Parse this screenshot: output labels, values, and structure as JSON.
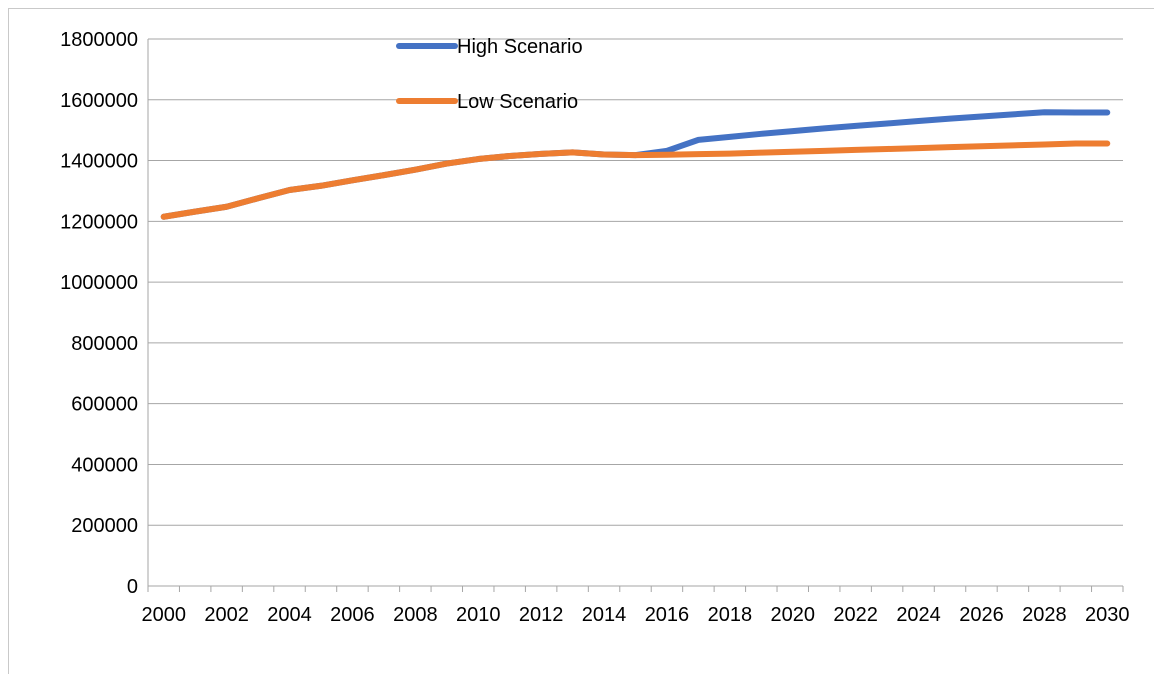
{
  "chart_data": {
    "type": "line",
    "title": "",
    "xlabel": "",
    "ylabel": "",
    "x": [
      2000,
      2001,
      2002,
      2003,
      2004,
      2005,
      2006,
      2007,
      2008,
      2009,
      2010,
      2011,
      2012,
      2013,
      2014,
      2015,
      2016,
      2017,
      2018,
      2019,
      2020,
      2021,
      2022,
      2023,
      2024,
      2025,
      2026,
      2027,
      2028,
      2029,
      2030
    ],
    "x_tick_labels": [
      "2000",
      "2002",
      "2004",
      "2006",
      "2008",
      "2010",
      "2012",
      "2014",
      "2016",
      "2018",
      "2020",
      "2022",
      "2024",
      "2026",
      "2028",
      "2030"
    ],
    "ylim": [
      0,
      1800000
    ],
    "y_tick_labels": [
      "0",
      "200000",
      "400000",
      "600000",
      "800000",
      "1000000",
      "1200000",
      "1400000",
      "1600000",
      "1800000"
    ],
    "y_ticks": [
      0,
      200000,
      400000,
      600000,
      800000,
      1000000,
      1200000,
      1400000,
      1600000,
      1800000
    ],
    "grid": "horizontal",
    "legend_position": "top-center",
    "series": [
      {
        "name": "High Scenario",
        "color": "#4472C4",
        "values": [
          1215000,
          1232000,
          1248000,
          1276000,
          1303000,
          1317000,
          1335000,
          1352000,
          1370000,
          1390000,
          1405000,
          1415000,
          1422000,
          1427000,
          1420000,
          1418000,
          1432000,
          1468000,
          1478000,
          1488000,
          1497000,
          1506000,
          1514000,
          1522000,
          1530000,
          1538000,
          1545000,
          1552000,
          1559000,
          1558000,
          1558000
        ]
      },
      {
        "name": "Low Scenario",
        "color": "#ED7D31",
        "values": [
          1215000,
          1232000,
          1248000,
          1276000,
          1303000,
          1317000,
          1335000,
          1352000,
          1370000,
          1390000,
          1405000,
          1415000,
          1422000,
          1427000,
          1420000,
          1418000,
          1419000,
          1421000,
          1423000,
          1426000,
          1429000,
          1432000,
          1435000,
          1438000,
          1441000,
          1444000,
          1447000,
          1450000,
          1453000,
          1456000,
          1456000
        ]
      }
    ]
  }
}
